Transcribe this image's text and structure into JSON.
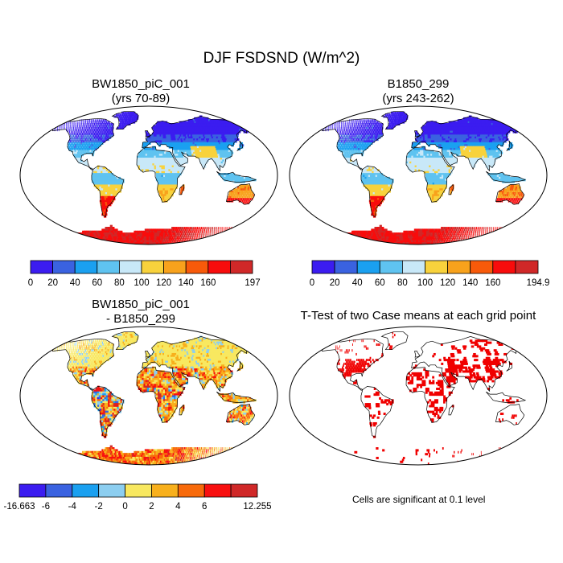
{
  "figure": {
    "title": "DJF FSDSND (W/m^2)",
    "note": "Cells are significant at 0.1 level"
  },
  "panels": [
    {
      "id": "p1",
      "title1": "BW1850_piC_001",
      "title2": "(yrs 70-89)"
    },
    {
      "id": "p2",
      "title1": "B1850_299",
      "title2": "(yrs 243-262)"
    },
    {
      "id": "p3",
      "title1": "BW1850_piC_001",
      "title2": "- B1850_299"
    },
    {
      "id": "p4",
      "title1": "T-Test of two Case means at each grid point",
      "title2": ""
    }
  ],
  "colorbars": {
    "c1": {
      "labels": [
        "0",
        "20",
        "40",
        "60",
        "80",
        "100",
        "120",
        "140",
        "160",
        "197"
      ],
      "colors": [
        "#3b1cf0",
        "#3a62e0",
        "#1aa0f0",
        "#5fc3f0",
        "#c8e8f8",
        "#f8d23c",
        "#f8a21c",
        "#f85a0a",
        "#f80c0c",
        "#d02828"
      ]
    },
    "c2": {
      "labels": [
        "0",
        "20",
        "40",
        "60",
        "80",
        "100",
        "120",
        "140",
        "160",
        "194.9"
      ],
      "colors": [
        "#3b1cf0",
        "#3a62e0",
        "#1aa0f0",
        "#5fc3f0",
        "#c8e8f8",
        "#f8d23c",
        "#f8a21c",
        "#f85a0a",
        "#f80c0c",
        "#d02828"
      ]
    },
    "c3": {
      "labels": [
        "-16.663",
        "-6",
        "-4",
        "-2",
        "0",
        "2",
        "4",
        "6",
        "12.255"
      ],
      "colors": [
        "#3b1cf0",
        "#3a62e0",
        "#1aa0f0",
        "#8ccef0",
        "#f8e860",
        "#f8b01c",
        "#f86a0a",
        "#f81010",
        "#d02828"
      ]
    }
  },
  "map_palette": {
    "absolute": [
      "#3b1cf0",
      "#3a62e0",
      "#1aa0f0",
      "#5fc3f0",
      "#c8e8f8",
      "#f8d23c",
      "#f8a21c",
      "#f85a0a",
      "#f80c0c",
      "#d02828"
    ],
    "diff": [
      "#3b1cf0",
      "#3a62e0",
      "#1aa0f0",
      "#8ccef0",
      "#f8e860",
      "#f8b01c",
      "#f86a0a",
      "#f81010",
      "#d02828"
    ],
    "ttest": "#f00000"
  }
}
